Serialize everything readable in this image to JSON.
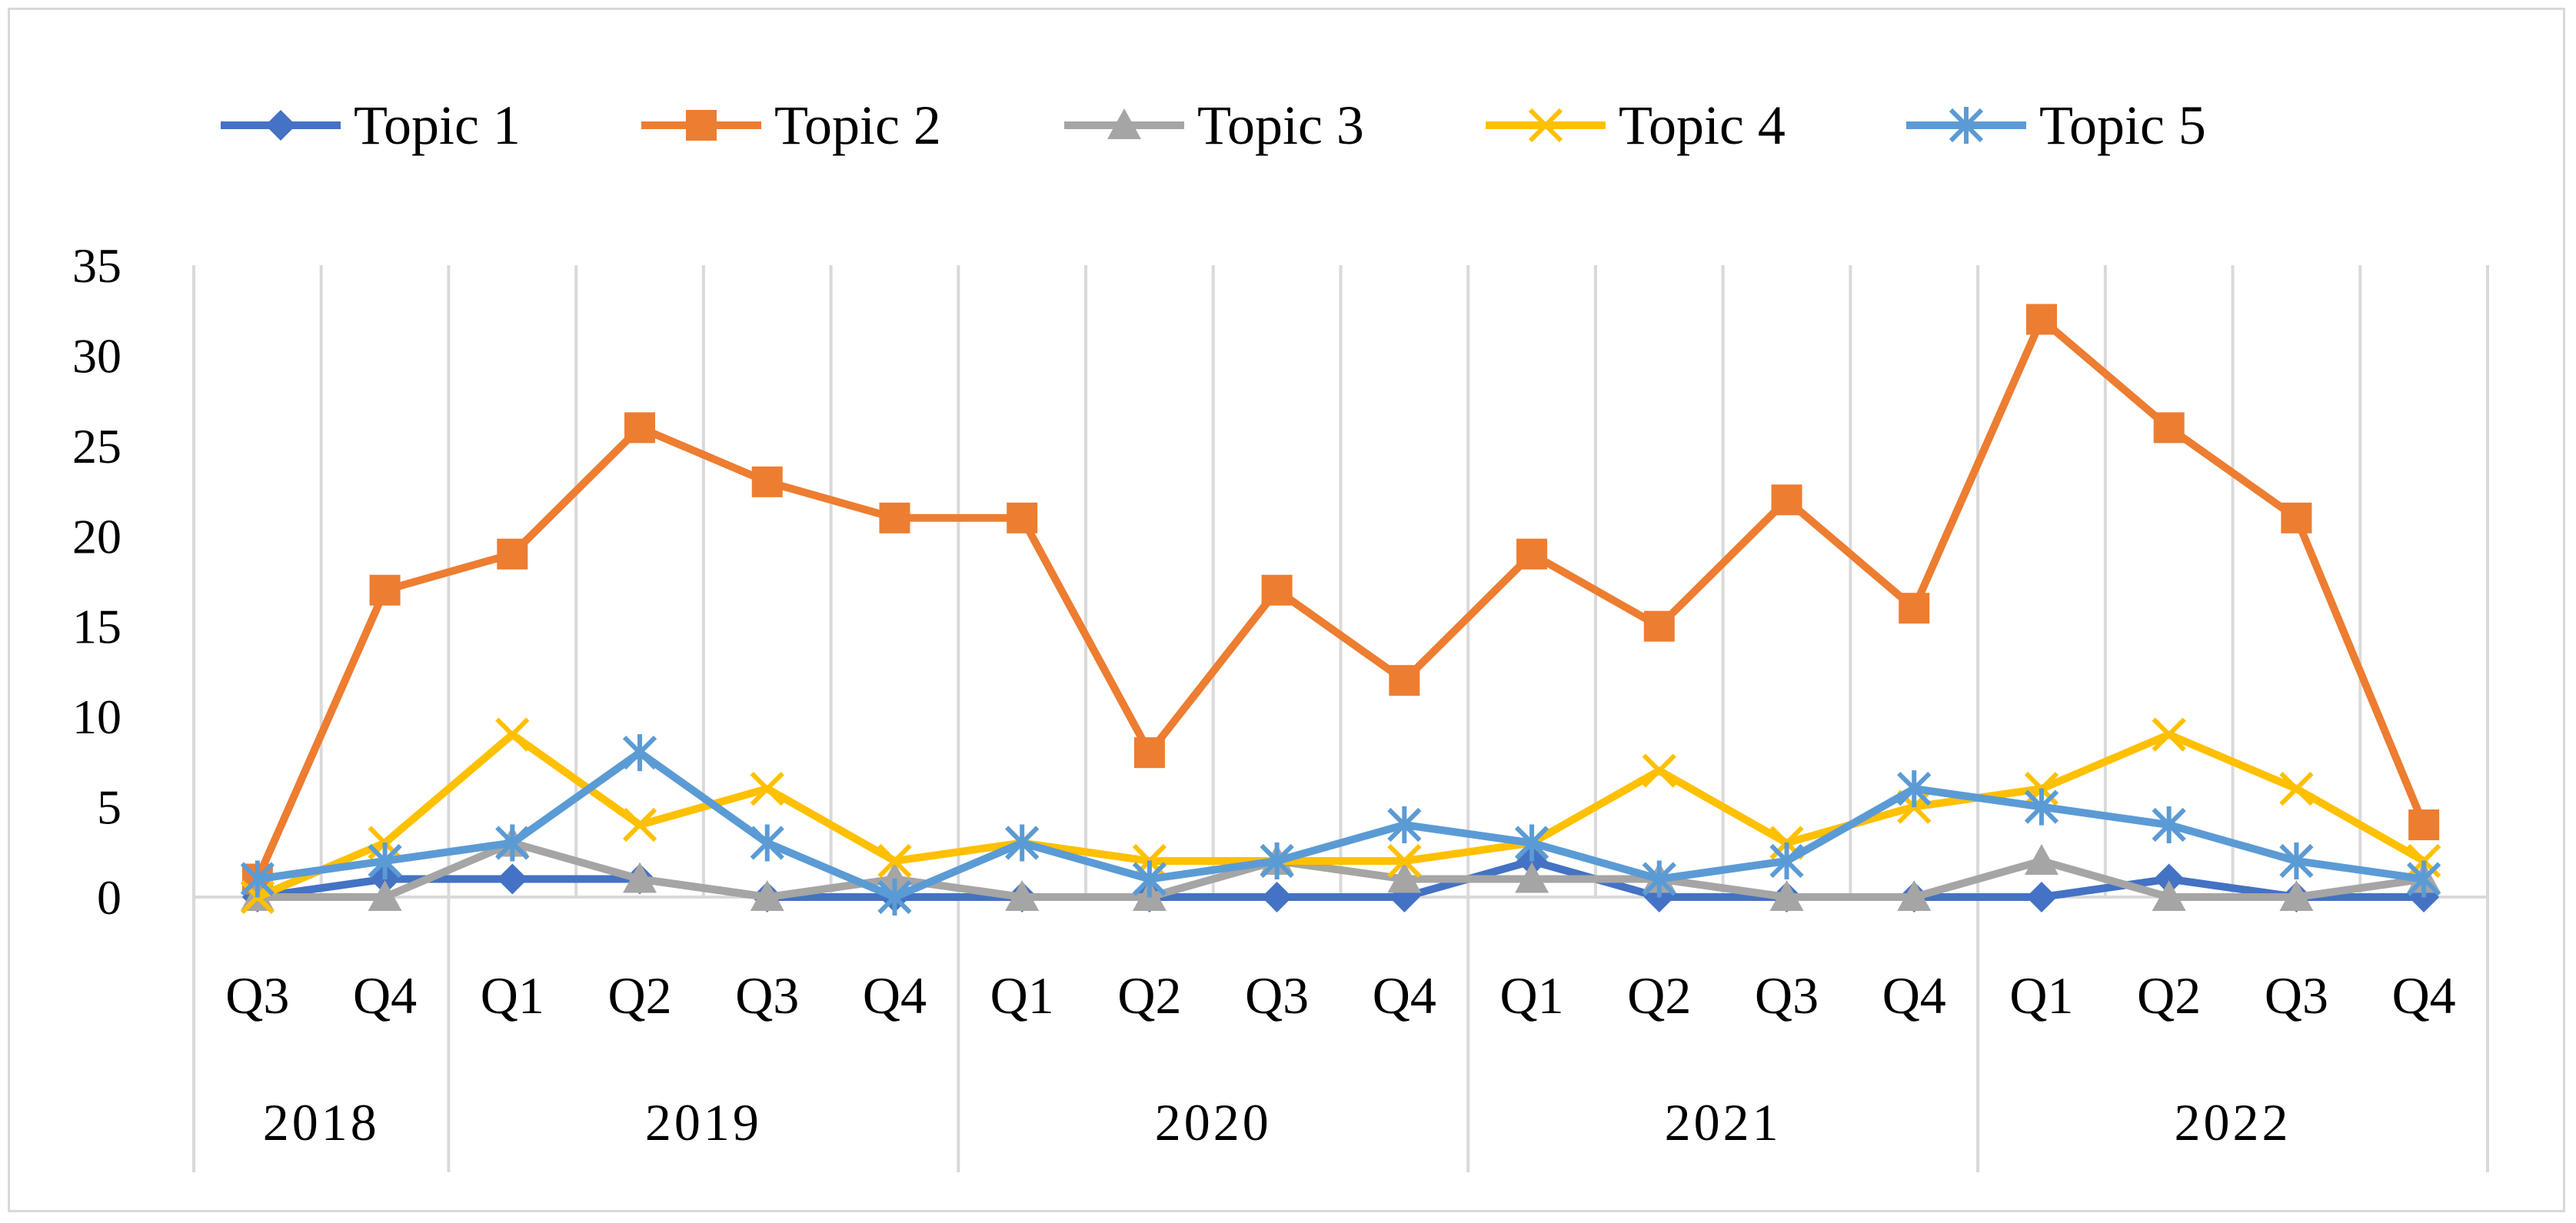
{
  "chart_data": {
    "type": "line",
    "title": "",
    "xlabel": "",
    "ylabel": "",
    "ylim": [
      0,
      35
    ],
    "yticks": [
      0,
      5,
      10,
      15,
      20,
      25,
      30,
      35
    ],
    "grid": "vertical",
    "legend_position": "top",
    "categories": [
      "Q3",
      "Q4",
      "Q1",
      "Q2",
      "Q3",
      "Q4",
      "Q1",
      "Q2",
      "Q3",
      "Q4",
      "Q1",
      "Q2",
      "Q3",
      "Q4",
      "Q1",
      "Q2",
      "Q3",
      "Q4"
    ],
    "year_groups": [
      {
        "label": "2018",
        "count": 2
      },
      {
        "label": "2019",
        "count": 4
      },
      {
        "label": "2020",
        "count": 4
      },
      {
        "label": "2021",
        "count": 4
      },
      {
        "label": "2022",
        "count": 4
      }
    ],
    "series": [
      {
        "name": "Topic 1",
        "color": "#4472c4",
        "marker": "diamond",
        "values": [
          0,
          1,
          1,
          1,
          0,
          0,
          0,
          0,
          0,
          0,
          2,
          0,
          0,
          0,
          0,
          1,
          0,
          0
        ]
      },
      {
        "name": "Topic 2",
        "color": "#ed7d31",
        "marker": "square",
        "values": [
          1,
          17,
          19,
          26,
          23,
          21,
          21,
          8,
          17,
          12,
          19,
          15,
          22,
          16,
          32,
          26,
          21,
          4
        ]
      },
      {
        "name": "Topic 3",
        "color": "#a5a5a5",
        "marker": "triangle",
        "values": [
          0,
          0,
          3,
          1,
          0,
          1,
          0,
          0,
          2,
          1,
          1,
          1,
          0,
          0,
          2,
          0,
          0,
          1
        ]
      },
      {
        "name": "Topic 4",
        "color": "#ffc000",
        "marker": "x",
        "values": [
          0,
          3,
          9,
          4,
          6,
          2,
          3,
          2,
          2,
          2,
          3,
          7,
          3,
          5,
          6,
          9,
          6,
          2
        ]
      },
      {
        "name": "Topic 5",
        "color": "#5b9bd5",
        "marker": "star",
        "values": [
          1,
          2,
          3,
          8,
          3,
          0,
          3,
          1,
          2,
          4,
          3,
          1,
          2,
          6,
          5,
          4,
          2,
          1
        ]
      }
    ]
  }
}
